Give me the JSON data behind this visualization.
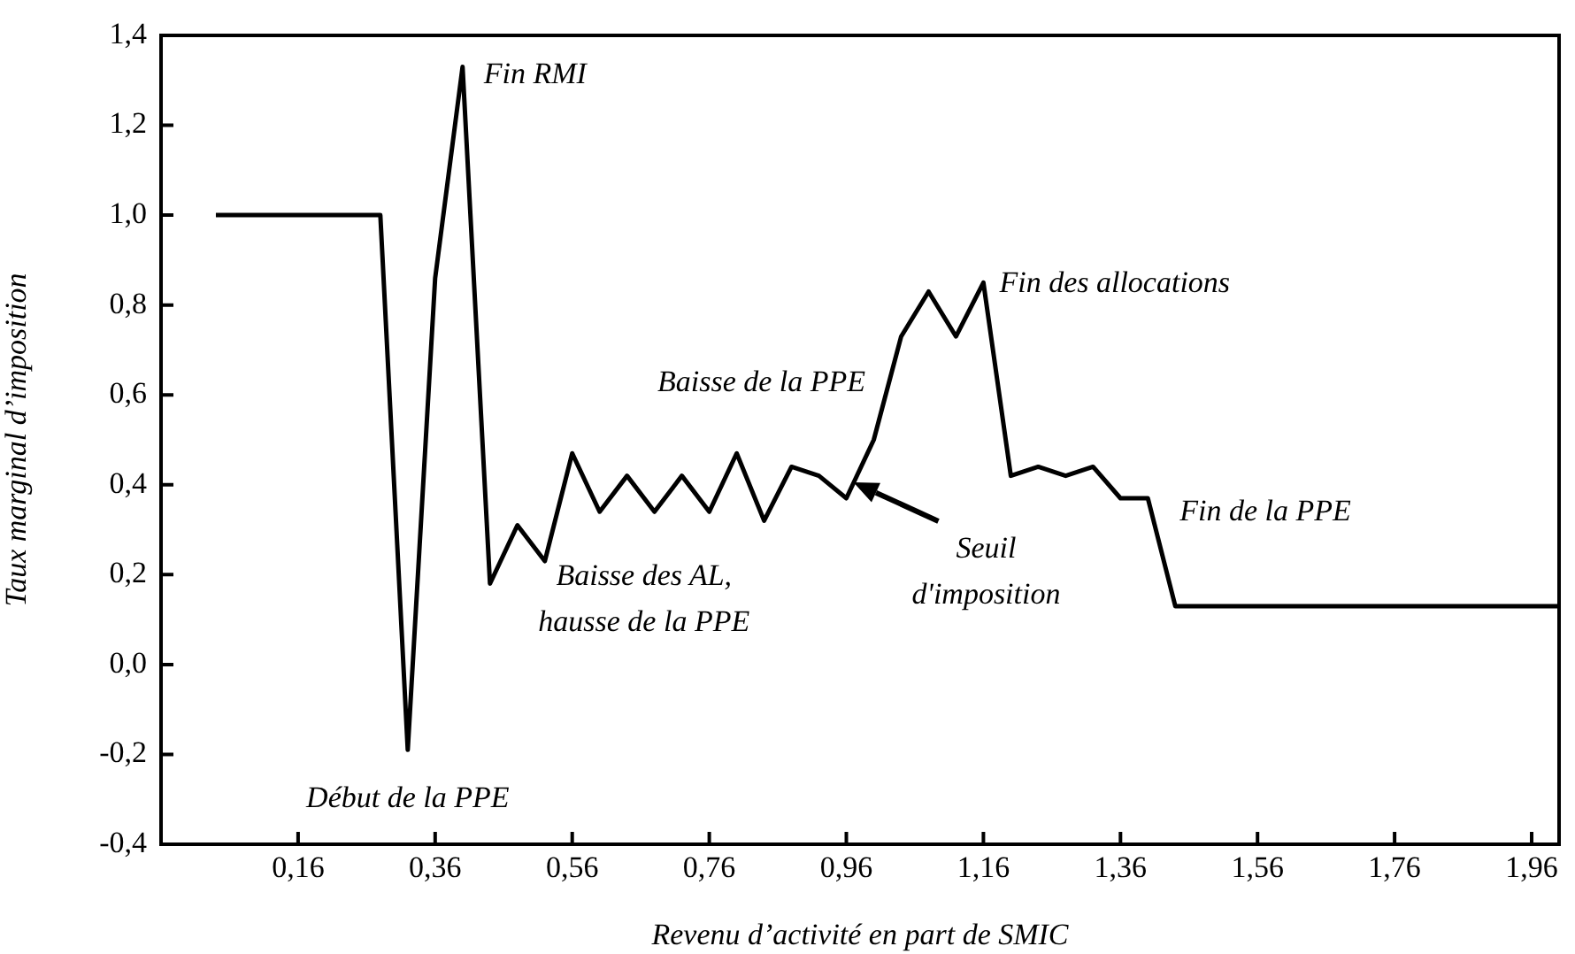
{
  "chart_data": {
    "type": "line",
    "xlabel": "Revenu d’activité en part de SMIC",
    "ylabel": "Taux marginal d’imposition",
    "x": [
      0.04,
      0.08,
      0.12,
      0.16,
      0.2,
      0.24,
      0.28,
      0.32,
      0.36,
      0.4,
      0.44,
      0.48,
      0.52,
      0.56,
      0.6,
      0.64,
      0.68,
      0.72,
      0.76,
      0.8,
      0.84,
      0.88,
      0.92,
      0.96,
      1.0,
      1.04,
      1.08,
      1.12,
      1.16,
      1.2,
      1.24,
      1.28,
      1.32,
      1.36,
      1.4,
      1.44,
      1.48,
      1.52,
      1.56,
      1.6,
      1.64,
      1.68,
      1.72,
      1.76,
      1.8,
      1.84,
      1.88,
      1.92,
      1.96,
      2.0
    ],
    "series": [
      {
        "color": "#000000",
        "values": [
          1.0,
          1.0,
          1.0,
          1.0,
          1.0,
          1.0,
          1.0,
          -0.19,
          0.86,
          1.33,
          0.18,
          0.31,
          0.23,
          0.47,
          0.34,
          0.42,
          0.34,
          0.42,
          0.34,
          0.47,
          0.32,
          0.44,
          0.42,
          0.37,
          0.5,
          0.73,
          0.83,
          0.73,
          0.85,
          0.42,
          0.44,
          0.42,
          0.44,
          0.37,
          0.37,
          0.13,
          0.13,
          0.13,
          0.13,
          0.13,
          0.13,
          0.13,
          0.13,
          0.13,
          0.13,
          0.13,
          0.13,
          0.13,
          0.13,
          0.13
        ]
      }
    ],
    "xlim": [
      -0.04,
      2.0
    ],
    "xticks": [
      {
        "value": 0.16,
        "label": "0,16"
      },
      {
        "value": 0.36,
        "label": "0,36"
      },
      {
        "value": 0.56,
        "label": "0,56"
      },
      {
        "value": 0.76,
        "label": "0,76"
      },
      {
        "value": 0.96,
        "label": "0,96"
      },
      {
        "value": 1.16,
        "label": "1,16"
      },
      {
        "value": 1.36,
        "label": "1,36"
      },
      {
        "value": 1.56,
        "label": "1,56"
      },
      {
        "value": 1.76,
        "label": "1,76"
      },
      {
        "value": 1.96,
        "label": "1,96"
      }
    ],
    "ylim": [
      -0.4,
      1.4
    ],
    "yticks": [
      {
        "value": -0.4,
        "label": "-0,4"
      },
      {
        "value": -0.2,
        "label": "-0,2"
      },
      {
        "value": 0,
        "label": "0,0"
      },
      {
        "value": 0.2,
        "label": "0,2"
      },
      {
        "value": 0.4,
        "label": "0,4"
      },
      {
        "value": 0.6,
        "label": "0,6"
      },
      {
        "value": 0.8,
        "label": "0,8"
      },
      {
        "value": 1.0,
        "label": "1,0"
      },
      {
        "value": 1.2,
        "label": "1,2"
      },
      {
        "value": 1.4,
        "label": "1,4"
      }
    ],
    "grid": false,
    "legend": false,
    "marker": "none",
    "line_style": "solid",
    "annotations": [
      {
        "text": "Fin RMI",
        "x": 0.4,
        "y": 1.33
      },
      {
        "text": "Début de la PPE",
        "x": 0.32,
        "y": -0.19
      },
      {
        "text": "Baisse des AL,\nhausse de la PPE",
        "x": 0.52,
        "y": 0.23
      },
      {
        "text": "Baisse de la PPE",
        "x": 0.88,
        "y": 0.44
      },
      {
        "text": "Seuil\nd'imposition",
        "x": 0.96,
        "y": 0.37
      },
      {
        "text": "Fin des allocations",
        "x": 1.16,
        "y": 0.85
      },
      {
        "text": "Fin de la PPE",
        "x": 1.4,
        "y": 0.37
      }
    ]
  }
}
